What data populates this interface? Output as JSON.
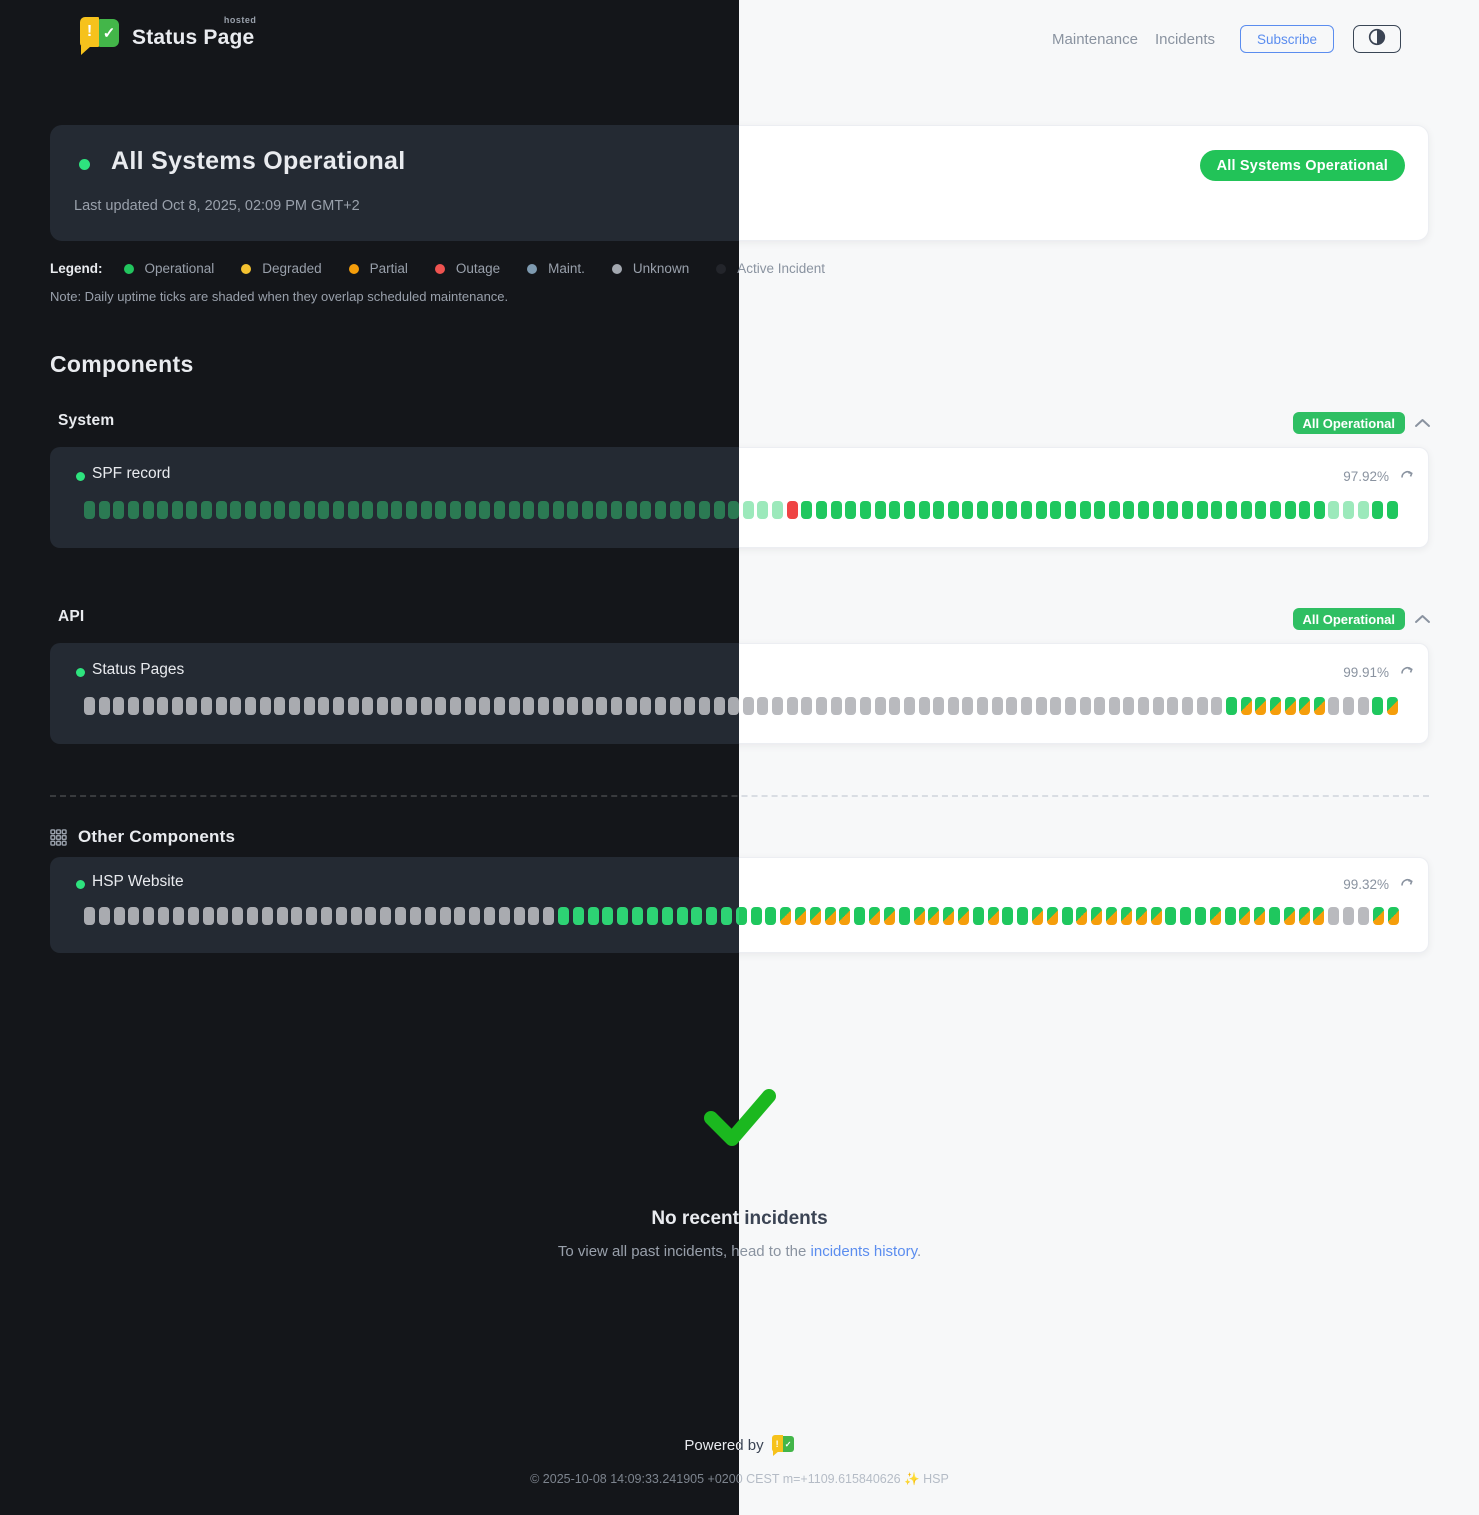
{
  "header": {
    "brand": "Status Page",
    "brand_sup": "hosted",
    "nav": {
      "maintenance": "Maintenance",
      "incidents": "Incidents"
    },
    "subscribe_label": "Subscribe"
  },
  "banner": {
    "title": "All Systems Operational",
    "last_updated": "Last updated Oct 8, 2025, 02:09 PM GMT+2",
    "badge": "All Systems Operational"
  },
  "legend": {
    "label": "Legend:",
    "items": [
      {
        "label": "Operational",
        "color": "#22c55e"
      },
      {
        "label": "Degraded",
        "color": "#f4c230"
      },
      {
        "label": "Partial",
        "color": "#f59e0b"
      },
      {
        "label": "Outage",
        "color": "#ef5350"
      },
      {
        "label": "Maint.",
        "color": "#7e9ab0"
      },
      {
        "label": "Unknown",
        "color": "#a3a8b0"
      },
      {
        "label": "Active Incident",
        "color": "#23252b"
      }
    ],
    "note": "Note: Daily uptime ticks are shaded when they overlap scheduled maintenance."
  },
  "components": {
    "heading": "Components",
    "groups": [
      {
        "name": "System",
        "badge": "All Operational",
        "items": [
          {
            "name": "SPF record",
            "uptime": "97.92%",
            "ticks": "ssssssssssssssssssssssssssssssssssssssssssssssssxoooooooooooooooooooooooooooooooooooosssoo"
          }
        ]
      },
      {
        "name": "API",
        "badge": "All Operational",
        "items": [
          {
            "name": "Status Pages",
            "uptime": "99.91%",
            "ticks": "uuuuuuuuuuuuuuuuuuuuuuuuuuuuuuuuuuuuuuuuuuuuuuuuuuuuuuuuuuuuuuuuuuuuuuuuuuuuuuoppppppuuuop"
          }
        ]
      }
    ],
    "other": {
      "heading": "Other Components",
      "items": [
        {
          "name": "HSP Website",
          "uptime": "99.32%",
          "ticks": "uuuuuuuuuuuuuuuuuuuuuuuuuuuuuuuuooooooooooooooopppppoppoppppopooppoppppppooopoppopppuuupp"
        }
      ]
    }
  },
  "incidents": {
    "title": "No recent incidents",
    "subtitle_prefix": "To view all past incidents, head to the ",
    "link_label": "incidents history",
    "subtitle_suffix": "."
  },
  "footer": {
    "powered_by": "Powered by",
    "copyright": "© 2025-10-08 14:09:33.241905 +0200 CEST m=+1109.615840626 ✨ HSP"
  },
  "colors": {
    "accent_green": "#22c358",
    "check_green": "#1bb81f",
    "logo_yellow": "#f6c21c",
    "logo_green": "#43b649"
  }
}
